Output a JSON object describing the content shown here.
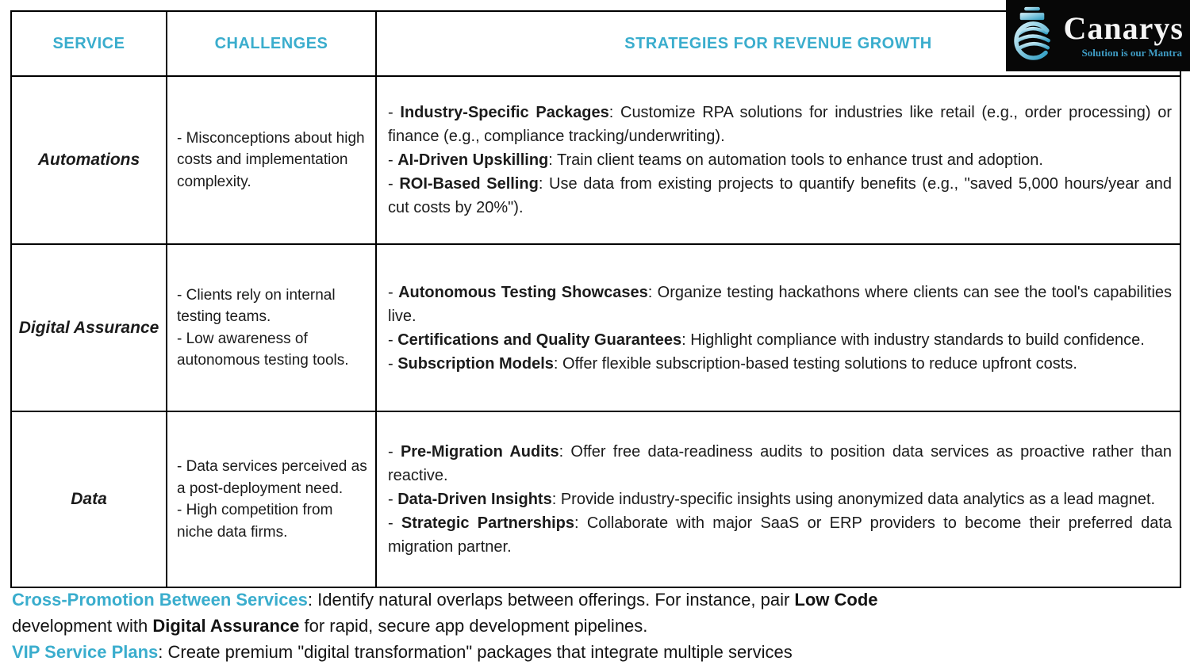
{
  "colors": {
    "accent": "#3aadcd",
    "text": "#1b1b1b",
    "border": "#000000",
    "logo_background": "#070707",
    "logo_name_color": "#f5f5f5",
    "logo_tagline_color": "#3f9cc4"
  },
  "logo": {
    "name": "Canarys",
    "tagline": "Solution is our Mantra",
    "icon": "canarys-swirl-bird-icon"
  },
  "table": {
    "bullet_prefix": "- ",
    "label_separator": ": ",
    "headers": [
      "SERVICE",
      "CHALLENGES",
      "STRATEGIES FOR REVENUE GROWTH"
    ],
    "rows": [
      {
        "service": "Automations",
        "challenges": [
          "- Misconceptions about high costs and implementation complexity."
        ],
        "strategies": [
          {
            "label": "Industry-Specific Packages",
            "text": "Customize RPA solutions for industries like retail (e.g., order processing) or finance (e.g., compliance tracking/underwriting)."
          },
          {
            "label": "AI-Driven Upskilling",
            "text": "Train client teams on automation tools to enhance trust and adoption."
          },
          {
            "label": "ROI-Based Selling",
            "text": "Use data from existing projects to quantify benefits (e.g., \"saved 5,000 hours/year and cut costs by 20%\")."
          }
        ]
      },
      {
        "service": "Digital Assurance",
        "challenges": [
          "- Clients rely on internal testing teams.",
          "- Low awareness of autonomous testing tools."
        ],
        "strategies": [
          {
            "label": "Autonomous Testing Showcases",
            "text": "Organize testing hackathons where clients can see the tool's capabilities live."
          },
          {
            "label": "Certifications and Quality Guarantees",
            "text": "Highlight compliance with industry standards to build confidence."
          },
          {
            "label": "Subscription Models",
            "text": "Offer flexible subscription-based testing solutions to reduce upfront costs."
          }
        ]
      },
      {
        "service": "Data",
        "challenges": [
          "- Data services perceived as a post-deployment need.",
          "- High competition from niche data firms."
        ],
        "strategies": [
          {
            "label": "Pre-Migration Audits",
            "text": "Offer free data-readiness audits to position data services as proactive rather than reactive."
          },
          {
            "label": "Data-Driven Insights",
            "text": "Provide industry-specific insights using anonymized data analytics as a lead magnet."
          },
          {
            "label": "Strategic Partnerships",
            "text": "Collaborate with major SaaS or ERP providers to become their preferred data migration partner."
          }
        ]
      }
    ]
  },
  "footer": {
    "paragraphs": [
      {
        "segments": [
          {
            "text": "Cross-Promotion Between Services",
            "teal": true,
            "bold": true
          },
          {
            "text": ": Identify natural overlaps between offerings. For instance, pair "
          },
          {
            "text": "Low Code",
            "bold": true
          },
          {
            "break": true
          },
          {
            "text": "development with "
          },
          {
            "text": "Digital Assurance",
            "bold": true
          },
          {
            "text": " for rapid, secure app development pipelines."
          }
        ]
      },
      {
        "segments": [
          {
            "text": "VIP Service Plans",
            "teal": true,
            "bold": true
          },
          {
            "text": ": Create premium \"digital transformation\" packages that integrate multiple services"
          }
        ]
      }
    ]
  }
}
